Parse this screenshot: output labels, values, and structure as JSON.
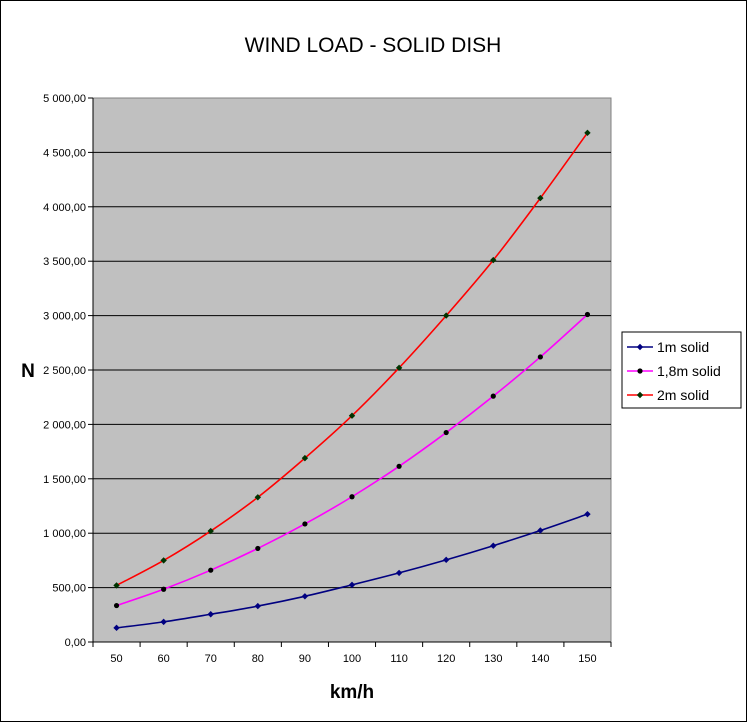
{
  "chart_data": {
    "type": "line",
    "title": "WIND LOAD - SOLID DISH",
    "xlabel": "km/h",
    "ylabel": "N",
    "categories": [
      "50",
      "60",
      "70",
      "80",
      "90",
      "100",
      "110",
      "120",
      "130",
      "140",
      "150"
    ],
    "yticks": [
      "0,00",
      "500,00",
      "1 000,00",
      "1 500,00",
      "2 000,00",
      "2 500,00",
      "3 000,00",
      "3 500,00",
      "4 000,00",
      "4 500,00",
      "5 000,00"
    ],
    "ylim": [
      0,
      5000
    ],
    "grid": true,
    "legend_position": "right",
    "series": [
      {
        "name": "1m solid",
        "color": "#000080",
        "marker": "diamond",
        "values": [
          130,
          185,
          255,
          330,
          420,
          525,
          635,
          755,
          885,
          1025,
          1175
        ]
      },
      {
        "name": "1,8m solid",
        "color": "#ff00ff",
        "marker": "circle",
        "values": [
          335,
          485,
          660,
          860,
          1085,
          1335,
          1615,
          1925,
          2260,
          2620,
          3010
        ]
      },
      {
        "name": "2m solid",
        "color": "#ff0000",
        "marker": "diamond",
        "values": [
          520,
          750,
          1020,
          1330,
          1690,
          2080,
          2520,
          3000,
          3510,
          4080,
          4680
        ]
      }
    ]
  },
  "colors": {
    "plot_background": "#c0c0c0",
    "gridline": "#000000",
    "marker": "#000000"
  }
}
